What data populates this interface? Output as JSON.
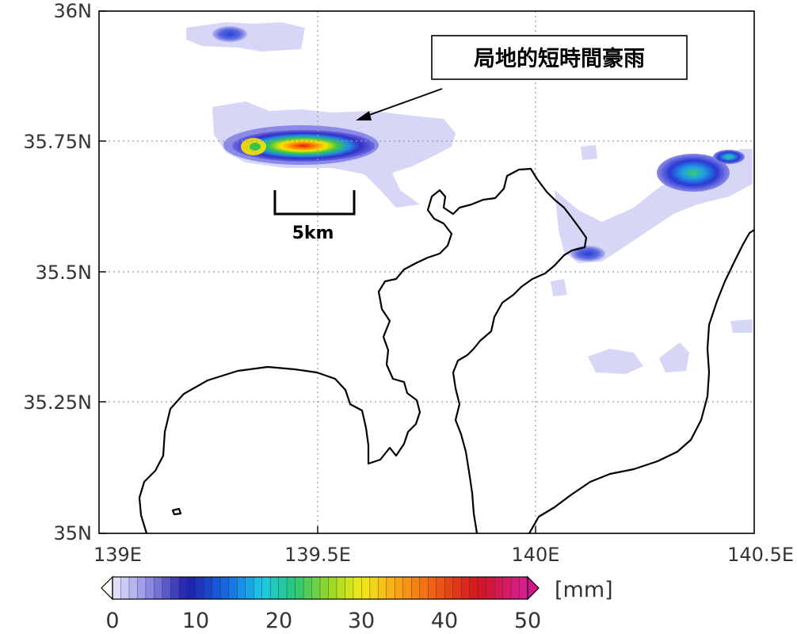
{
  "map": {
    "lat_labels": [
      "36N",
      "35.75N",
      "35.5N",
      "35.25N",
      "35N"
    ],
    "lon_labels": [
      "139E",
      "139.5E",
      "140E",
      "140.5E"
    ],
    "lat_range": [
      35.0,
      36.0
    ],
    "lon_range": [
      139.0,
      140.5
    ],
    "gridlines": "dotted",
    "annotation": "局地的短時間豪雨",
    "scale_bar_label": "5km"
  },
  "colorbar": {
    "ticks": [
      "0",
      "10",
      "20",
      "30",
      "40",
      "50"
    ],
    "unit_label": "[mm]",
    "range": [
      0,
      50
    ]
  },
  "colors": {
    "coast": "#000000",
    "grid": "#9a9a9a",
    "arrow": "#000000"
  }
}
